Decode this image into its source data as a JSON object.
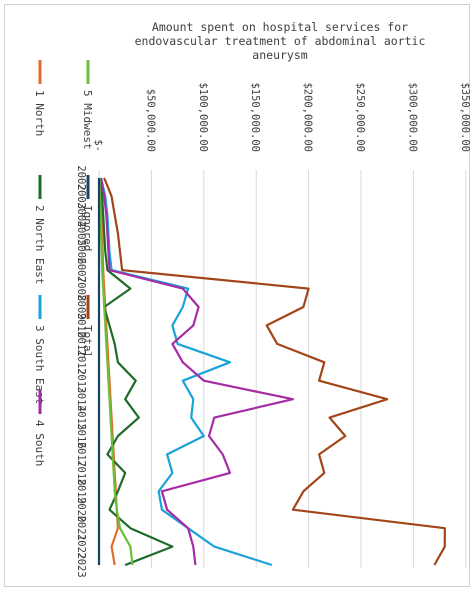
{
  "chart_data": {
    "type": "line",
    "title_lines": [
      "Amount spent on hospital services for",
      "endovascular treatment of abdominal aortic",
      "aneurysm"
    ],
    "title": "Amount spent on hospital services for endovascular treatment of abdominal aortic aneurysm",
    "xlabel": "",
    "ylabel": "",
    "orientation": "rotated 90 degrees clockwise (years run top to bottom, amounts left to right)",
    "grid": true,
    "legend_position": "left",
    "ylim": [
      0,
      350000
    ],
    "y_tick_labels": [
      "$-",
      "$50,000.00",
      "$100,000.00",
      "$150,000.00",
      "$200,000.00",
      "$250,000.00",
      "$300,000.00",
      "$350,000.00"
    ],
    "y_tick_values": [
      0,
      50000,
      100000,
      150000,
      200000,
      250000,
      300000,
      350000
    ],
    "categories": [
      "2002",
      "2003",
      "2004",
      "2005",
      "2006",
      "2007",
      "2008",
      "2009",
      "2010",
      "2011",
      "2012",
      "2013",
      "2014",
      "2015",
      "2016",
      "2017",
      "2018",
      "2019",
      "2020",
      "2021",
      "2022",
      "2023"
    ],
    "series": [
      {
        "name": "1 North",
        "color": "#e46c2a",
        "values": [
          1000,
          2000,
          2500,
          3000,
          3500,
          4000,
          5000,
          6000,
          7000,
          8000,
          9000,
          10000,
          11000,
          12000,
          13000,
          14000,
          15000,
          16000,
          17000,
          18000,
          12000,
          15000
        ]
      },
      {
        "name": "2 North East",
        "color": "#1e6b2a",
        "values": [
          1000,
          3000,
          4000,
          5000,
          6000,
          8000,
          30000,
          5000,
          10000,
          15000,
          18000,
          35000,
          25000,
          38000,
          18000,
          8000,
          25000,
          18000,
          10000,
          30000,
          70000,
          25000
        ]
      },
      {
        "name": "3 South East",
        "color": "#1aa3d9",
        "values": [
          2000,
          6000,
          8000,
          9000,
          10000,
          12000,
          85000,
          80000,
          70000,
          75000,
          125000,
          80000,
          90000,
          88000,
          100000,
          65000,
          70000,
          57000,
          60000,
          85000,
          110000,
          165000
        ]
      },
      {
        "name": "4 South",
        "color": "#a62ca6",
        "values": [
          2000,
          5000,
          7000,
          8000,
          9000,
          10000,
          80000,
          95000,
          90000,
          70000,
          80000,
          100000,
          185000,
          110000,
          105000,
          118000,
          125000,
          60000,
          65000,
          85000,
          90000,
          92000
        ]
      },
      {
        "name": "5 Midwest",
        "color": "#6cbf3a",
        "values": [
          500,
          1000,
          1500,
          2000,
          2500,
          3000,
          4000,
          5000,
          6000,
          7000,
          8000,
          9000,
          10000,
          11000,
          12000,
          13000,
          14000,
          15000,
          17000,
          20000,
          30000,
          32000
        ]
      },
      {
        "name": "Ignored",
        "color": "#16465f",
        "values": [
          0,
          0,
          0,
          0,
          0,
          0,
          0,
          0,
          0,
          0,
          0,
          0,
          0,
          0,
          0,
          0,
          0,
          0,
          0,
          0,
          0,
          0
        ]
      },
      {
        "name": "Total",
        "color": "#a2461a",
        "values": [
          5000,
          12000,
          15000,
          18000,
          20000,
          22000,
          200000,
          195000,
          160000,
          170000,
          215000,
          210000,
          275000,
          220000,
          235000,
          210000,
          215000,
          195000,
          185000,
          330000,
          330000,
          320000
        ]
      }
    ]
  },
  "legend": [
    {
      "name": "1 North",
      "color": "#e46c2a"
    },
    {
      "name": "5 Midwest",
      "color": "#6cbf3a"
    },
    {
      "name": "2 North East",
      "color": "#1e6b2a"
    },
    {
      "name": "Ignored",
      "color": "#16465f"
    },
    {
      "name": "3 South East",
      "color": "#1aa3d9"
    },
    {
      "name": "Total",
      "color": "#a2461a"
    },
    {
      "name": "4 South",
      "color": "#a62ca6"
    }
  ]
}
